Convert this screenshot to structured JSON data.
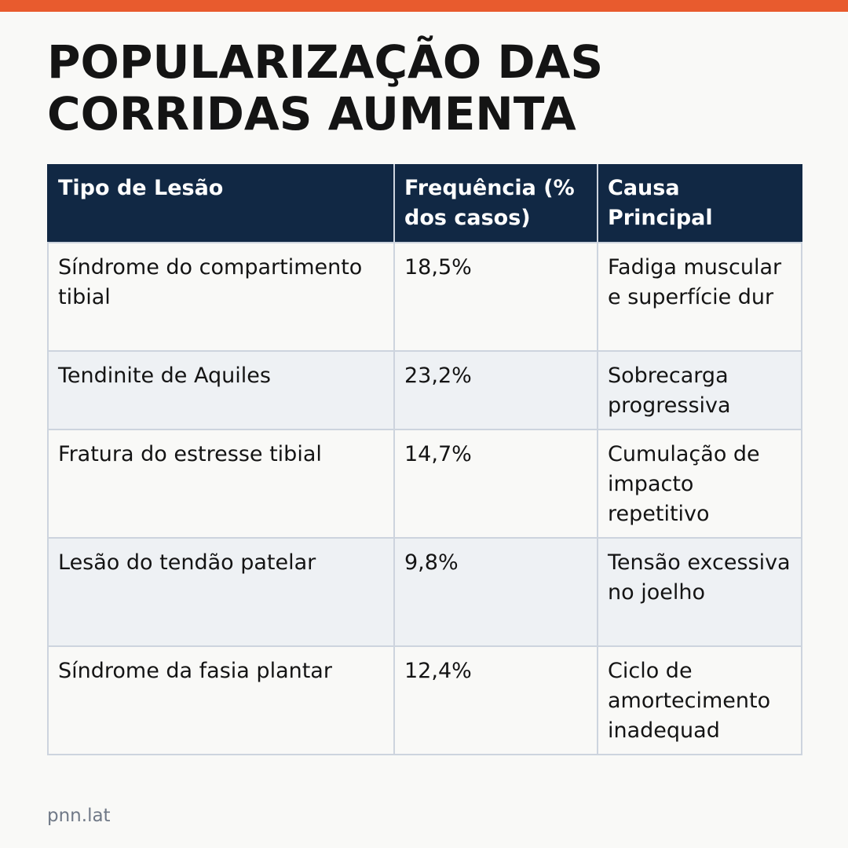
{
  "colors": {
    "accent_bar": "#e85b2e",
    "header_bg": "#112844",
    "header_text": "#ffffff",
    "row_alt_bg": "#eef1f4",
    "border": "#cdd4de",
    "footer_text": "#707987"
  },
  "headline": "POPULARIZAÇÃO DAS\nCORRIDAS AUMENTA",
  "table": {
    "headers": {
      "injury_type": "Tipo de Lesão",
      "frequency": "Frequência (% dos casos)",
      "main_cause": "Causa Principal"
    },
    "rows": [
      {
        "injury_type": "Síndrome do compartimento tibial",
        "frequency": "18,5%",
        "main_cause": "Fadiga muscular e superfície dur"
      },
      {
        "injury_type": "Tendinite de Aquiles",
        "frequency": "23,2%",
        "main_cause": "Sobrecarga progressiva"
      },
      {
        "injury_type": "Fratura do estresse tibial",
        "frequency": "14,7%",
        "main_cause": "Cumulação de impacto repetitivo"
      },
      {
        "injury_type": "Lesão do tendão patelar",
        "frequency": "9,8%",
        "main_cause": "Tensão excessiva no joelho"
      },
      {
        "injury_type": "Síndrome da fasia plantar",
        "frequency": "12,4%",
        "main_cause": "Ciclo de amortecimento inadequad"
      }
    ]
  },
  "footer": {
    "source": "pnn.lat"
  }
}
